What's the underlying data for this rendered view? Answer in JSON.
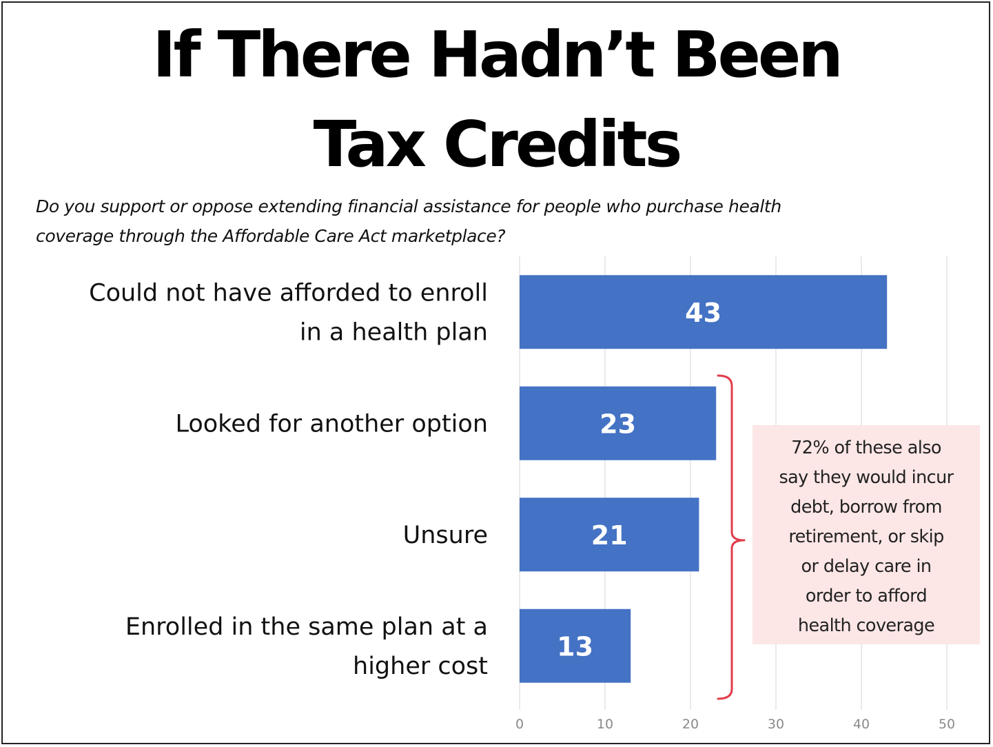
{
  "title": {
    "line1": "If There Hadn’t Been",
    "line2": "Tax Credits"
  },
  "subtitle": {
    "line1": "Do you support or oppose extending financial assistance for people who purchase health",
    "line2": "coverage through the Affordable Care Act marketplace?"
  },
  "chart_data": {
    "type": "bar",
    "orientation": "horizontal",
    "categories": [
      [
        "Could not have afforded to enroll",
        "in a health plan"
      ],
      [
        "Looked for another option"
      ],
      [
        "Unsure"
      ],
      [
        "Enrolled in the same plan at a",
        "higher cost"
      ]
    ],
    "values": [
      43,
      23,
      21,
      13
    ],
    "value_labels": [
      "43",
      "23",
      "21",
      "13"
    ],
    "xlim": [
      0,
      50
    ],
    "xticks": [
      "0",
      "10",
      "20",
      "30",
      "40",
      "50"
    ],
    "grid": true,
    "bar_color": "#4472c4"
  },
  "annotation": {
    "lines": [
      "72% of these also",
      "say they would incur",
      "debt, borrow from",
      "retirement, or skip",
      "or delay care in",
      "order to afford",
      "health coverage"
    ],
    "bracket_color": "#e03c4a",
    "box_color": "#fde6e6"
  }
}
